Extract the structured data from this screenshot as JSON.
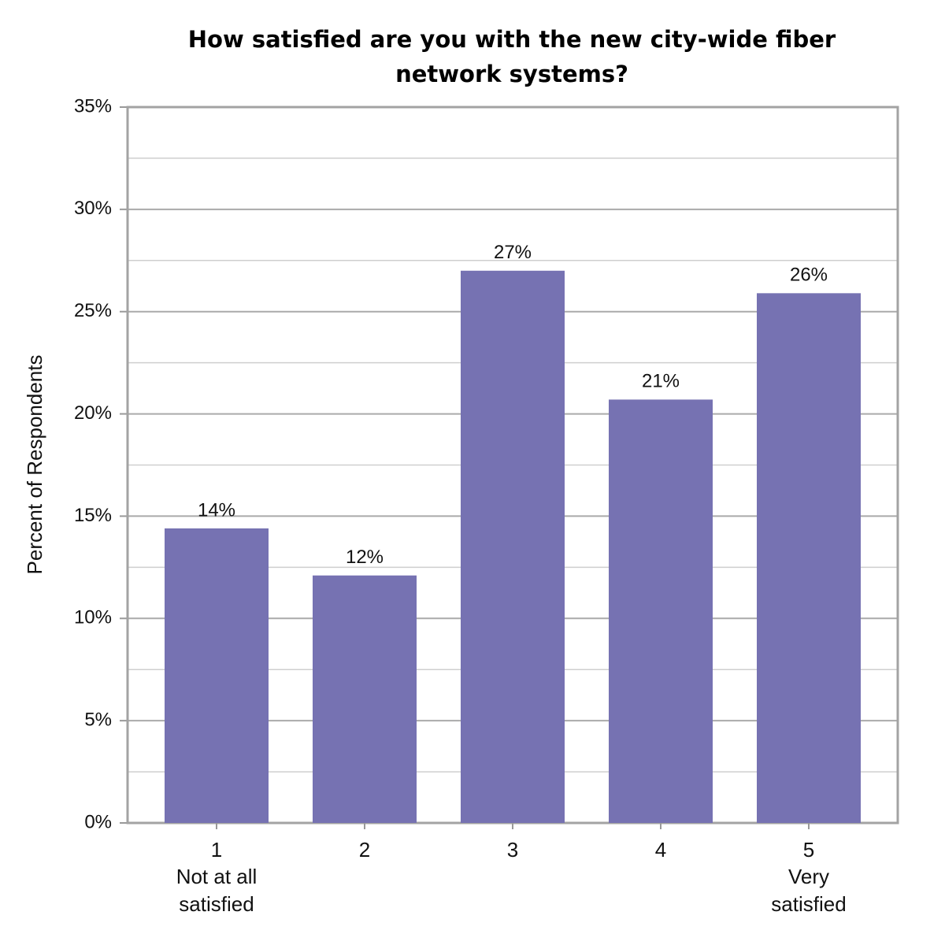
{
  "chart_data": {
    "type": "bar",
    "title": "How satisfied are you with the new city-wide fiber network systems?",
    "y_label": "Percent of Respondents",
    "categories": [
      "1",
      "2",
      "3",
      "4",
      "5"
    ],
    "category_descriptions": [
      "Not at all satisfied",
      null,
      null,
      null,
      "Very satisfied"
    ],
    "values": [
      14.4,
      12.1,
      27.0,
      20.7,
      25.9
    ],
    "value_labels": [
      "14%",
      "12%",
      "27%",
      "21%",
      "26%"
    ],
    "color": "#7672b2",
    "ylim": [
      0,
      35
    ],
    "yticks": [
      {
        "value": 0,
        "label": "0%"
      },
      {
        "value": 5,
        "label": "5%"
      },
      {
        "value": 10,
        "label": "10%"
      },
      {
        "value": 15,
        "label": "15%"
      },
      {
        "value": 20,
        "label": "20%"
      },
      {
        "value": 25,
        "label": "25%"
      },
      {
        "value": 30,
        "label": "30%"
      },
      {
        "value": 35,
        "label": "35%"
      }
    ],
    "minor_yticks": [
      2.5,
      7.5,
      12.5,
      17.5,
      22.5,
      27.5,
      32.5
    ],
    "grid": true
  }
}
